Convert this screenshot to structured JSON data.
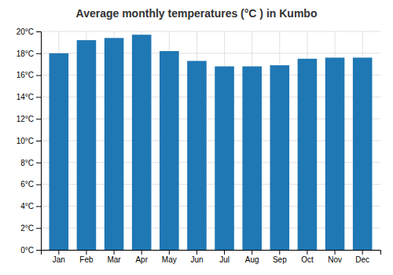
{
  "chart_data": {
    "type": "bar",
    "title": "Average monthly temperatures (°C ) in Kumbo",
    "categories": [
      "Jan",
      "Feb",
      "Mar",
      "Apr",
      "May",
      "Jun",
      "Jul",
      "Aug",
      "Sep",
      "Oct",
      "Nov",
      "Dec"
    ],
    "values": [
      18.0,
      19.2,
      19.4,
      19.7,
      18.2,
      17.3,
      16.8,
      16.8,
      16.9,
      17.5,
      17.6,
      17.6
    ],
    "ylim": [
      0,
      20
    ],
    "yticks": [
      {
        "value": 0,
        "label": "0°C"
      },
      {
        "value": 2,
        "label": "2°C"
      },
      {
        "value": 4,
        "label": "4°C"
      },
      {
        "value": 6,
        "label": "6°C"
      },
      {
        "value": 8,
        "label": "8°C"
      },
      {
        "value": 10,
        "label": "10°C"
      },
      {
        "value": 12,
        "label": "12°C"
      },
      {
        "value": 14,
        "label": "14°C"
      },
      {
        "value": 16,
        "label": "16°C"
      },
      {
        "value": 18,
        "label": "18°C"
      },
      {
        "value": 20,
        "label": "20°C"
      }
    ],
    "grid": true
  }
}
